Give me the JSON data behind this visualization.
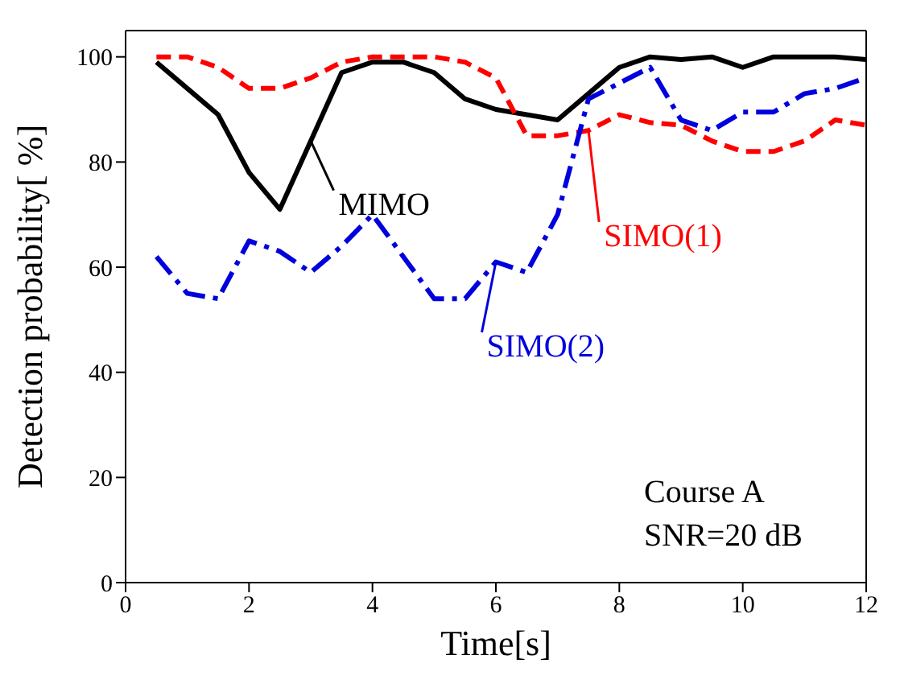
{
  "chart_data": {
    "type": "line",
    "xlabel": "Time[s]",
    "ylabel": "Detection probability[ %]",
    "x": [
      0.5,
      1,
      1.5,
      2,
      2.5,
      3,
      3.5,
      4,
      4.5,
      5,
      5.5,
      6,
      6.5,
      7,
      7.5,
      8,
      8.5,
      9,
      9.5,
      10,
      10.5,
      11,
      11.5,
      12
    ],
    "series": [
      {
        "name": "MIMO",
        "color": "#000000",
        "line_style": "solid",
        "values": [
          99,
          94,
          89,
          78,
          71,
          84,
          97,
          99,
          99,
          97,
          92,
          90,
          89,
          88,
          93,
          98,
          100,
          99.5,
          100,
          98,
          100,
          100,
          100,
          99.5
        ]
      },
      {
        "name": "SIMO(1)",
        "color": "#ff0000",
        "line_style": "dashed",
        "values": [
          100,
          100,
          98,
          94,
          94,
          96,
          99,
          100,
          100,
          100,
          99,
          96,
          85,
          85,
          86,
          89,
          87.5,
          87,
          84,
          82,
          82,
          84,
          88,
          87
        ]
      },
      {
        "name": "SIMO(2)",
        "color": "#0000dd",
        "line_style": "dashdot",
        "values": [
          62,
          55,
          54,
          65,
          63,
          59,
          64,
          70,
          62,
          54,
          54,
          61,
          59,
          70,
          92,
          95,
          98,
          88,
          86,
          89.5,
          89.5,
          93,
          94,
          96
        ]
      }
    ],
    "annotations": [
      "Course A",
      "SNR=20 dB"
    ],
    "xlim": [
      0,
      12
    ],
    "xticks": [
      0,
      2,
      4,
      6,
      8,
      10,
      12
    ],
    "ylim": [
      0,
      105
    ],
    "yticks": [
      0,
      20,
      40,
      60,
      80,
      100
    ],
    "grid": false,
    "legend": "top",
    "marker": "none"
  }
}
